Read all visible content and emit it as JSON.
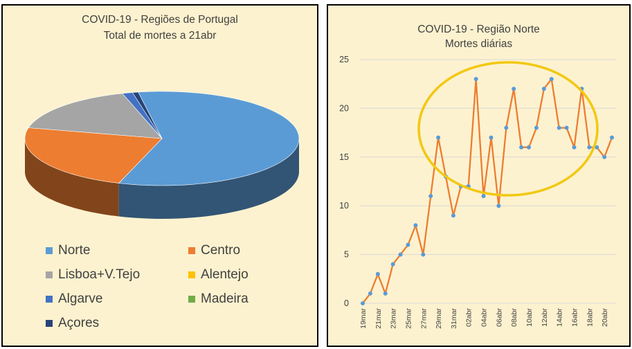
{
  "colors": {
    "background": "#fdf2cf",
    "norte": "#5b9bd5",
    "centro": "#ed7d31",
    "lisboa": "#a5a5a5",
    "alentejo": "#ffc000",
    "algarve": "#4472c4",
    "madeira": "#70ad47",
    "acores": "#264478",
    "line": "#ed7d31",
    "marker": "#5b9bd5",
    "highlight": "#f2c811"
  },
  "chart_data": [
    {
      "type": "pie",
      "title": "COVID-19 - Regiões de Portugal",
      "subtitle": "Total de mortes a 21abr",
      "labels": [
        "Norte",
        "Centro",
        "Lisboa+V.Tejo",
        "Alentejo",
        "Algarve",
        "Madeira",
        "Açores"
      ],
      "values": [
        430,
        175,
        124,
        0,
        9,
        0,
        5
      ],
      "legend_position": "bottom"
    },
    {
      "type": "line",
      "title": "COVID-19 - Região Norte",
      "subtitle": "Mortes diárias",
      "series_name": "Mortes diárias",
      "x": [
        "19mar",
        "20mar",
        "21mar",
        "22mar",
        "23mar",
        "24mar",
        "25mar",
        "26mar",
        "27mar",
        "28mar",
        "29mar",
        "30mar",
        "31mar",
        "01abr",
        "02abr",
        "03abr",
        "04abr",
        "05abr",
        "06abr",
        "07abr",
        "08abr",
        "09abr",
        "10abr",
        "11abr",
        "12abr",
        "13abr",
        "14abr",
        "15abr",
        "16abr",
        "17abr",
        "18abr",
        "19abr",
        "20abr",
        "21abr"
      ],
      "tick_labels": [
        "19mar",
        "21mar",
        "23mar",
        "25mar",
        "27mar",
        "29mar",
        "31mar",
        "02abr",
        "04abr",
        "06abr",
        "08abr",
        "10abr",
        "12abr",
        "14abr",
        "16abr",
        "18abr",
        "20abr"
      ],
      "values": [
        0,
        1,
        3,
        1,
        4,
        5,
        6,
        8,
        5,
        11,
        17,
        13,
        9,
        12,
        12,
        23,
        11,
        17,
        10,
        18,
        22,
        16,
        16,
        18,
        22,
        23,
        18,
        18,
        16,
        22,
        16,
        16,
        15,
        17
      ],
      "ylim": [
        0,
        25
      ],
      "yticks": [
        0,
        5,
        10,
        15,
        20,
        25
      ],
      "annotation": "highlight-ellipse"
    }
  ]
}
